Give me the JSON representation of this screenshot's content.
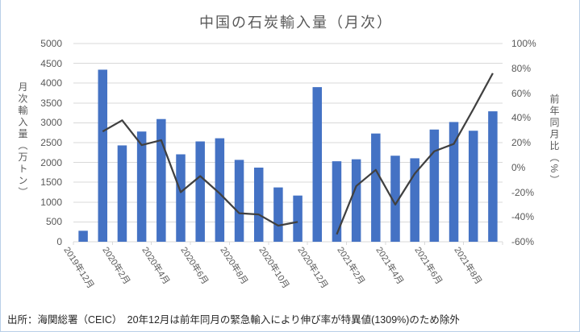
{
  "chart_data": {
    "type": "combo-bar-line",
    "title": "中国の石炭輸入量（月次）",
    "note": "出所：海関総署（CEIC）　20年12月は前年同月の緊急輸入により伸び率が特異値(1309%)のため除外",
    "categories": [
      "2019年12月",
      "2020年1月",
      "2020年2月",
      "2020年3月",
      "2020年4月",
      "2020年5月",
      "2020年6月",
      "2020年7月",
      "2020年8月",
      "2020年9月",
      "2020年10月",
      "2020年11月",
      "2020年12月",
      "2021年1月",
      "2021年2月",
      "2021年3月",
      "2021年4月",
      "2021年5月",
      "2021年6月",
      "2021年7月",
      "2021年8月",
      "2021年9月"
    ],
    "x_tick_labels": [
      "2019年12月",
      "2020年2月",
      "2020年4月",
      "2020年6月",
      "2020年8月",
      "2020年10月",
      "2020年12月",
      "2021年2月",
      "2021年4月",
      "2021年6月",
      "2021年8月"
    ],
    "left_axis": {
      "title": "月次輸入量（万トン）",
      "min": 0,
      "max": 5000,
      "step": 500,
      "tick_labels": [
        "5000",
        "4500",
        "4000",
        "3500",
        "3000",
        "2500",
        "2000",
        "1500",
        "1000",
        "500",
        "0"
      ]
    },
    "right_axis": {
      "title": "前年同月比（%）",
      "min": -60,
      "max": 100,
      "step": 20,
      "tick_labels": [
        "100%",
        "80%",
        "60%",
        "40%",
        "20%",
        "0%",
        "-20%",
        "-40%",
        "-60%"
      ]
    },
    "series": [
      {
        "name": "月次輸入量（万トン）",
        "type": "bar",
        "axis": "left",
        "color": "#4472C4",
        "values": [
          277,
          4340,
          2430,
          2780,
          3095,
          2205,
          2530,
          2610,
          2065,
          1870,
          1370,
          1165,
          3900,
          2030,
          2080,
          2730,
          2170,
          2105,
          2830,
          3020,
          2800,
          3290
        ]
      },
      {
        "name": "前年同月比（%）",
        "type": "line",
        "axis": "right",
        "color": "#404040",
        "values": [
          null,
          29,
          38,
          18,
          22,
          -20,
          -7,
          -21,
          -37,
          -38,
          -47,
          -44,
          null,
          -54,
          -15,
          -2,
          -30,
          -5,
          13,
          19,
          47,
          76
        ]
      }
    ],
    "grid": true,
    "legend_position": "none",
    "excluded_point": {
      "category": "2020年12月",
      "reason": "特異値",
      "value_pct": 1309
    }
  },
  "style": {
    "bar_color": "#4472C4",
    "line_color": "#404040",
    "grid_color": "#D9D9D9",
    "axis_line_color": "#D9D9D9",
    "axis_text_color": "#595959",
    "title_color": "#595959",
    "note_color": "#262626",
    "frame_color": "#B9CFE8"
  }
}
